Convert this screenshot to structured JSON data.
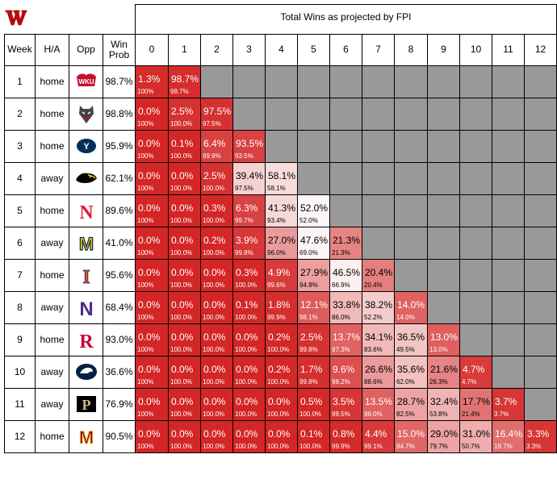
{
  "title": "Total Wins as projected by FPI",
  "headers": {
    "week": "Week",
    "ha": "H/A",
    "opp": "Opp",
    "winprob": "Win Prob"
  },
  "win_columns": [
    "0",
    "1",
    "2",
    "3",
    "4",
    "5",
    "6",
    "7",
    "8",
    "9",
    "10",
    "11",
    "12"
  ],
  "opponent_logos": [
    "wku-logo",
    "new-mexico-logo",
    "byu-logo",
    "iowa-logo",
    "nebraska-logo",
    "michigan-logo",
    "illinois-logo",
    "northwestern-logo",
    "rutgers-logo",
    "penn-state-logo",
    "purdue-logo",
    "minnesota-logo"
  ],
  "rows": [
    {
      "week": "1",
      "ha": "home",
      "prob": "98.7%",
      "cells": [
        [
          "1.3%",
          "100%"
        ],
        [
          "98.7%",
          "98.7%"
        ]
      ]
    },
    {
      "week": "2",
      "ha": "home",
      "prob": "98.8%",
      "cells": [
        [
          "0.0%",
          "100%"
        ],
        [
          "2.5%",
          "100.0%"
        ],
        [
          "97.5%",
          "97.5%"
        ]
      ]
    },
    {
      "week": "3",
      "ha": "home",
      "prob": "95.9%",
      "cells": [
        [
          "0.0%",
          "100%"
        ],
        [
          "0.1%",
          "100.0%"
        ],
        [
          "6.4%",
          "99.9%"
        ],
        [
          "93.5%",
          "93.5%"
        ]
      ]
    },
    {
      "week": "4",
      "ha": "away",
      "prob": "62.1%",
      "cells": [
        [
          "0.0%",
          "100%"
        ],
        [
          "0.0%",
          "100.0%"
        ],
        [
          "2.5%",
          "100.0%"
        ],
        [
          "39.4%",
          "97.5%"
        ],
        [
          "58.1%",
          "58.1%"
        ]
      ]
    },
    {
      "week": "5",
      "ha": "home",
      "prob": "89.6%",
      "cells": [
        [
          "0.0%",
          "100%"
        ],
        [
          "0.0%",
          "100.0%"
        ],
        [
          "0.3%",
          "100.0%"
        ],
        [
          "6.3%",
          "99.7%"
        ],
        [
          "41.3%",
          "93.4%"
        ],
        [
          "52.0%",
          "52.0%"
        ]
      ]
    },
    {
      "week": "6",
      "ha": "away",
      "prob": "41.0%",
      "cells": [
        [
          "0.0%",
          "100%"
        ],
        [
          "0.0%",
          "100.0%"
        ],
        [
          "0.2%",
          "100.0%"
        ],
        [
          "3.9%",
          "99.8%"
        ],
        [
          "27.0%",
          "96.0%"
        ],
        [
          "47.6%",
          "69.0%"
        ],
        [
          "21.3%",
          "21.3%"
        ]
      ]
    },
    {
      "week": "7",
      "ha": "home",
      "prob": "95.6%",
      "cells": [
        [
          "0.0%",
          "100%"
        ],
        [
          "0.0%",
          "100.0%"
        ],
        [
          "0.0%",
          "100.0%"
        ],
        [
          "0.3%",
          "100.0%"
        ],
        [
          "4.9%",
          "99.6%"
        ],
        [
          "27.9%",
          "94.8%"
        ],
        [
          "46.5%",
          "66.9%"
        ],
        [
          "20.4%",
          "20.4%"
        ]
      ]
    },
    {
      "week": "8",
      "ha": "away",
      "prob": "68.4%",
      "cells": [
        [
          "0.0%",
          "100%"
        ],
        [
          "0.0%",
          "100.0%"
        ],
        [
          "0.0%",
          "100.0%"
        ],
        [
          "0.1%",
          "100.0%"
        ],
        [
          "1.8%",
          "99.9%"
        ],
        [
          "12.1%",
          "98.1%"
        ],
        [
          "33.8%",
          "86.0%"
        ],
        [
          "38.2%",
          "52.2%"
        ],
        [
          "14.0%",
          "14.0%"
        ]
      ]
    },
    {
      "week": "9",
      "ha": "home",
      "prob": "93.0%",
      "cells": [
        [
          "0.0%",
          "100%"
        ],
        [
          "0.0%",
          "100.0%"
        ],
        [
          "0.0%",
          "100.0%"
        ],
        [
          "0.0%",
          "100.0%"
        ],
        [
          "0.2%",
          "100.0%"
        ],
        [
          "2.5%",
          "99.8%"
        ],
        [
          "13.7%",
          "97.3%"
        ],
        [
          "34.1%",
          "83.6%"
        ],
        [
          "36.5%",
          "49.5%"
        ],
        [
          "13.0%",
          "13.0%"
        ]
      ]
    },
    {
      "week": "10",
      "ha": "away",
      "prob": "36.6%",
      "cells": [
        [
          "0.0%",
          "100%"
        ],
        [
          "0.0%",
          "100.0%"
        ],
        [
          "0.0%",
          "100.0%"
        ],
        [
          "0.0%",
          "100.0%"
        ],
        [
          "0.2%",
          "100.0%"
        ],
        [
          "1.7%",
          "99.8%"
        ],
        [
          "9.6%",
          "98.2%"
        ],
        [
          "26.6%",
          "88.6%"
        ],
        [
          "35.6%",
          "62.0%"
        ],
        [
          "21.6%",
          "26.3%"
        ],
        [
          "4.7%",
          "4.7%"
        ]
      ]
    },
    {
      "week": "11",
      "ha": "away",
      "prob": "76.9%",
      "cells": [
        [
          "0.0%",
          "100%"
        ],
        [
          "0.0%",
          "100.0%"
        ],
        [
          "0.0%",
          "100.0%"
        ],
        [
          "0.0%",
          "100.0%"
        ],
        [
          "0.0%",
          "100.0%"
        ],
        [
          "0.5%",
          "100.0%"
        ],
        [
          "3.5%",
          "99.5%"
        ],
        [
          "13.5%",
          "96.0%"
        ],
        [
          "28.7%",
          "82.5%"
        ],
        [
          "32.4%",
          "53.8%"
        ],
        [
          "17.7%",
          "21.4%"
        ],
        [
          "3.7%",
          "3.7%"
        ]
      ]
    },
    {
      "week": "12",
      "ha": "home",
      "prob": "90.5%",
      "cells": [
        [
          "0.0%",
          "100%"
        ],
        [
          "0.0%",
          "100.0%"
        ],
        [
          "0.0%",
          "100.0%"
        ],
        [
          "0.0%",
          "100.0%"
        ],
        [
          "0.0%",
          "100.0%"
        ],
        [
          "0.1%",
          "100.0%"
        ],
        [
          "0.8%",
          "99.9%"
        ],
        [
          "4.4%",
          "99.1%"
        ],
        [
          "15.0%",
          "94.7%"
        ],
        [
          "29.0%",
          "79.7%"
        ],
        [
          "31.0%",
          "50.7%"
        ],
        [
          "16.4%",
          "19.7%"
        ],
        [
          "3.3%",
          "3.3%"
        ]
      ]
    }
  ],
  "colors": {
    "red": "#cc0000",
    "gray": "#999999",
    "white": "#ffffff"
  }
}
